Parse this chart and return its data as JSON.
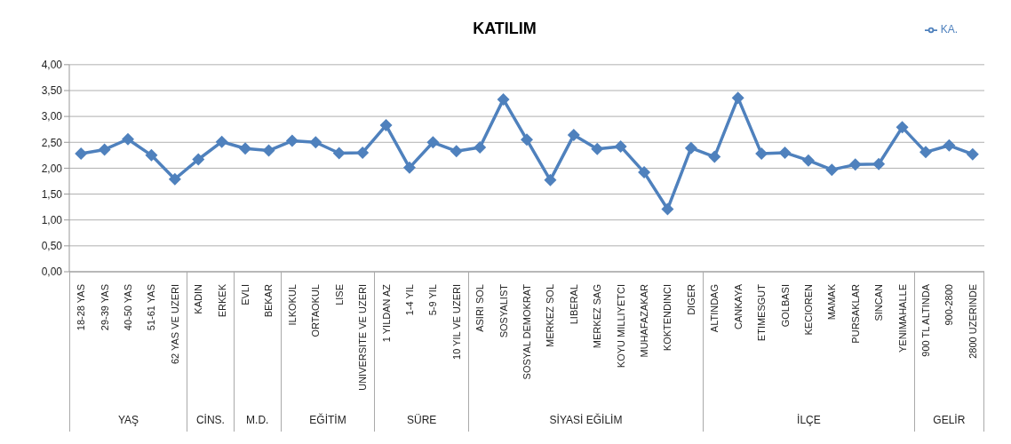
{
  "chart_data": {
    "type": "line",
    "title": "KATILIM",
    "categories": [
      "18-28 YAS",
      "29-39 YAS",
      "40-50 YAS",
      "51-61 YAS",
      "62 YAS VE UZERI",
      "KADIN",
      "ERKEK",
      "EVLI",
      "BEKAR",
      "ILKOKUL",
      "ORTAOKUL",
      "LISE",
      "UNIVERSITE VE UZERI",
      "1 YILDAN AZ",
      "1-4 YIL",
      "5-9 YIL",
      "10 YIL VE UZERI",
      "ASIRI SOL",
      "SOSYALIST",
      "SOSYAL DEMOKRAT",
      "MERKEZ SOL",
      "LIBERAL",
      "MERKEZ SAG",
      "KOYU MILLIYETCI",
      "MUHAFAZAKAR",
      "KOKTENDINCI",
      "DIGER",
      "ALTINDAG",
      "CANKAYA",
      "ETIMESGUT",
      "GOLBASI",
      "KECIOREN",
      "MAMAK",
      "PURSAKLAR",
      "SINCAN",
      "YENIMAHALLE",
      "900 TL ALTINDA",
      "900-2800",
      "2800 UZERINDE"
    ],
    "series": [
      {
        "name": "KA.",
        "color": "#4f81bd",
        "values": [
          2.28,
          2.36,
          2.56,
          2.25,
          1.79,
          2.17,
          2.51,
          2.38,
          2.34,
          2.53,
          2.5,
          2.29,
          2.3,
          2.83,
          2.01,
          2.5,
          2.33,
          2.4,
          3.33,
          2.55,
          1.77,
          2.64,
          2.37,
          2.42,
          1.92,
          1.21,
          2.39,
          2.22,
          3.36,
          2.28,
          2.3,
          2.15,
          1.97,
          2.07,
          2.08,
          2.79,
          2.31,
          2.44,
          2.27
        ]
      }
    ],
    "annotations": [
      "YAŞ",
      "CİNS.",
      "M.D.",
      "EĞİTİM",
      "SÜRE",
      "SİYASİ EĞİLİM",
      "İLÇE",
      "GELİR"
    ],
    "ylim": [
      0,
      4
    ],
    "yticks": [
      {
        "value": 0,
        "label": "0,00"
      },
      {
        "value": 0.5,
        "label": "0,50"
      },
      {
        "value": 1,
        "label": "1,00"
      },
      {
        "value": 1.5,
        "label": "1,50"
      },
      {
        "value": 2,
        "label": "2,00"
      },
      {
        "value": 2.5,
        "label": "2,50"
      },
      {
        "value": 3,
        "label": "3,00"
      },
      {
        "value": 3.5,
        "label": "3,50"
      },
      {
        "value": 4,
        "label": "4,00"
      }
    ],
    "grid": "y",
    "legend": "top right",
    "marker": "diamond",
    "line_style": "solid"
  }
}
